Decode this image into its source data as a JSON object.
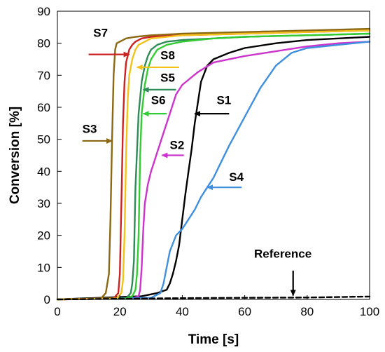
{
  "chart_data": {
    "type": "line",
    "title": "",
    "xlabel": "Time [s]",
    "ylabel": "Conversion [%]",
    "xlim": [
      0,
      100
    ],
    "ylim": [
      0,
      90
    ],
    "xticks": [
      0,
      20,
      40,
      60,
      80,
      100
    ],
    "yticks": [
      0,
      10,
      20,
      30,
      40,
      50,
      60,
      70,
      80,
      90
    ],
    "grid": false,
    "series": [
      {
        "name": "S1",
        "color": "#000000",
        "dash": false,
        "x": [
          0,
          27,
          32,
          35,
          36,
          37,
          38,
          39,
          40,
          41,
          42,
          43,
          44,
          46,
          48,
          50,
          55,
          60,
          70,
          80,
          90,
          100
        ],
        "y": [
          0,
          1,
          2,
          3,
          5,
          8,
          12,
          17,
          25,
          33,
          40,
          47,
          55,
          68,
          73,
          75,
          77,
          78.5,
          80,
          81,
          81.5,
          82
        ]
      },
      {
        "name": "S2",
        "color": "#cc33cc",
        "dash": false,
        "x": [
          0,
          24,
          26,
          26.5,
          27,
          27.5,
          28,
          29,
          30,
          31,
          32,
          34,
          36,
          38,
          40,
          45,
          50,
          60,
          70,
          80,
          90,
          100
        ],
        "y": [
          0,
          0.3,
          1,
          3,
          10,
          22,
          30,
          36,
          40,
          43,
          46,
          52,
          58,
          64,
          67,
          71,
          74,
          76,
          77.5,
          79,
          80,
          80.5
        ]
      },
      {
        "name": "S3",
        "color": "#8b6914",
        "dash": false,
        "x": [
          0,
          14,
          15.5,
          16.5,
          17,
          17.5,
          18,
          18.5,
          19,
          20,
          22,
          25,
          30,
          40,
          60,
          80,
          100
        ],
        "y": [
          0,
          0.3,
          2,
          8,
          25,
          50,
          70,
          78,
          80,
          80.5,
          81.5,
          82,
          82.5,
          83,
          83.5,
          84,
          84.5
        ]
      },
      {
        "name": "S4",
        "color": "#3f8fe0",
        "dash": false,
        "x": [
          0,
          30,
          33,
          34,
          35,
          36,
          38,
          40,
          42,
          44,
          46,
          48,
          50,
          52,
          55,
          60,
          65,
          70,
          75,
          80,
          90,
          100
        ],
        "y": [
          0,
          0.5,
          2,
          5,
          10,
          15,
          20,
          22,
          25,
          28,
          32,
          35,
          38,
          42,
          48,
          57,
          66,
          73,
          77,
          78.5,
          79.5,
          80.5
        ]
      },
      {
        "name": "S5",
        "color": "#2e8b57",
        "dash": false,
        "x": [
          0,
          22,
          23.5,
          24,
          24.5,
          25,
          26,
          27,
          28,
          29,
          30,
          32,
          35,
          40,
          50,
          60,
          80,
          100
        ],
        "y": [
          0,
          0.3,
          2,
          5,
          12,
          35,
          58,
          68,
          73,
          76,
          78,
          79.5,
          80.5,
          81,
          81.5,
          82,
          82.5,
          83
        ]
      },
      {
        "name": "S6",
        "color": "#33cc33",
        "dash": false,
        "x": [
          0,
          22,
          24,
          25,
          25.5,
          26,
          26.5,
          27,
          28,
          29,
          30,
          32,
          35,
          40,
          50,
          60,
          80,
          100
        ],
        "y": [
          0,
          0.3,
          1,
          3,
          8,
          20,
          45,
          58,
          67,
          72,
          75,
          78,
          79.5,
          80.5,
          81.5,
          82,
          82.5,
          83
        ]
      },
      {
        "name": "S7",
        "color": "#cc2222",
        "dash": false,
        "x": [
          0,
          18,
          19.5,
          20,
          20.5,
          21,
          21.5,
          22,
          23,
          24,
          25,
          27,
          30,
          40,
          60,
          80,
          100
        ],
        "y": [
          0,
          0.3,
          2,
          8,
          30,
          55,
          68,
          74,
          78,
          79.5,
          80.5,
          81.5,
          82,
          82.5,
          83,
          83.5,
          84
        ]
      },
      {
        "name": "S8",
        "color": "#f2c21a",
        "dash": false,
        "x": [
          0,
          19,
          20.5,
          21,
          21.5,
          22,
          22.5,
          23,
          24,
          25,
          26,
          28,
          30,
          40,
          60,
          80,
          100
        ],
        "y": [
          0,
          0.3,
          2,
          6,
          20,
          45,
          62,
          70,
          75,
          78,
          79.5,
          80.5,
          81.5,
          82.5,
          83,
          83.5,
          84
        ]
      },
      {
        "name": "Reference",
        "color": "#000000",
        "dash": true,
        "x": [
          0,
          20,
          40,
          60,
          80,
          100
        ],
        "y": [
          0,
          0.2,
          0.4,
          0.5,
          0.6,
          0.9
        ]
      }
    ],
    "annotations": [
      {
        "label": "S7",
        "color": "#cc2222",
        "text_at": [
          11.5,
          82
        ],
        "arrow_from": [
          10,
          76.5
        ],
        "arrow_to": [
          23,
          76.5
        ]
      },
      {
        "label": "S8",
        "color": "#f2c21a",
        "text_at": [
          33,
          75
        ],
        "arrow_from": [
          39,
          72.5
        ],
        "arrow_to": [
          25.5,
          72.5
        ]
      },
      {
        "label": "S5",
        "color": "#2e8b57",
        "text_at": [
          33,
          68
        ],
        "arrow_from": [
          38,
          65.5
        ],
        "arrow_to": [
          27.5,
          65.5
        ]
      },
      {
        "label": "S6",
        "color": "#33cc33",
        "text_at": [
          30,
          61
        ],
        "arrow_from": [
          35,
          58
        ],
        "arrow_to": [
          27.5,
          58
        ]
      },
      {
        "label": "S1",
        "color": "#000000",
        "text_at": [
          51,
          61
        ],
        "arrow_from": [
          55,
          58
        ],
        "arrow_to": [
          44,
          58
        ]
      },
      {
        "label": "S3",
        "color": "#8b6914",
        "text_at": [
          8,
          52
        ],
        "arrow_from": [
          8,
          49.5
        ],
        "arrow_to": [
          17.5,
          49.5
        ]
      },
      {
        "label": "S2",
        "color": "#cc33cc",
        "text_at": [
          36,
          47
        ],
        "arrow_from": [
          40.5,
          45
        ],
        "arrow_to": [
          33.5,
          45
        ]
      },
      {
        "label": "S4",
        "color": "#3f8fe0",
        "text_at": [
          55,
          37
        ],
        "arrow_from": [
          59,
          35
        ],
        "arrow_to": [
          48,
          35
        ]
      },
      {
        "label": "Reference",
        "color": "#000000",
        "text_at": [
          63,
          13
        ],
        "arrow_from": [
          75.5,
          9
        ],
        "arrow_to": [
          75.5,
          1.2
        ]
      }
    ]
  }
}
